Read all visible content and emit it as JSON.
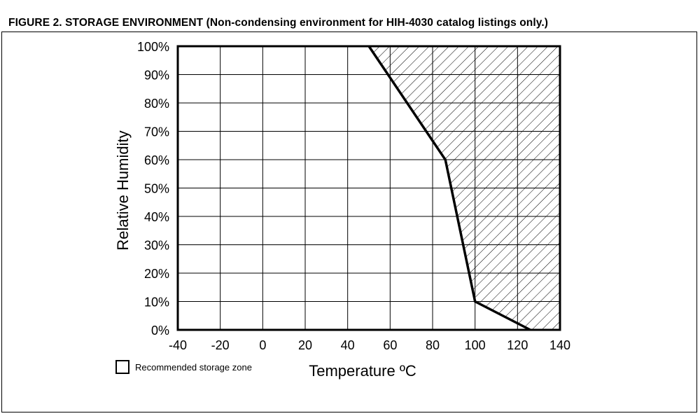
{
  "figure": {
    "title": "FIGURE 2. STORAGE ENVIRONMENT (Non-condensing environment for HIH-4030 catalog listings only.)"
  },
  "chart_data": {
    "type": "area",
    "xlabel": "Temperature ºC",
    "ylabel": "Relative Humidity",
    "xlim": [
      -40,
      140
    ],
    "ylim": [
      0,
      100
    ],
    "x_ticks": [
      -40,
      -20,
      0,
      20,
      40,
      60,
      80,
      100,
      120,
      140
    ],
    "x_tick_labels": [
      "-40",
      "-20",
      "0",
      "20",
      "40",
      "60",
      "80",
      "100",
      "120",
      "140"
    ],
    "y_ticks": [
      0,
      10,
      20,
      30,
      40,
      50,
      60,
      70,
      80,
      90,
      100
    ],
    "y_tick_labels": [
      "0%",
      "10%",
      "20%",
      "30%",
      "40%",
      "50%",
      "60%",
      "70%",
      "80%",
      "90%",
      "100%"
    ],
    "grid": true,
    "boundary": {
      "x": [
        50,
        86,
        100,
        126
      ],
      "y": [
        100,
        60,
        10,
        0
      ]
    },
    "hatched_region": "right of boundary",
    "legend": {
      "label": "Recommended storage zone",
      "placement": "bottom-left"
    }
  }
}
